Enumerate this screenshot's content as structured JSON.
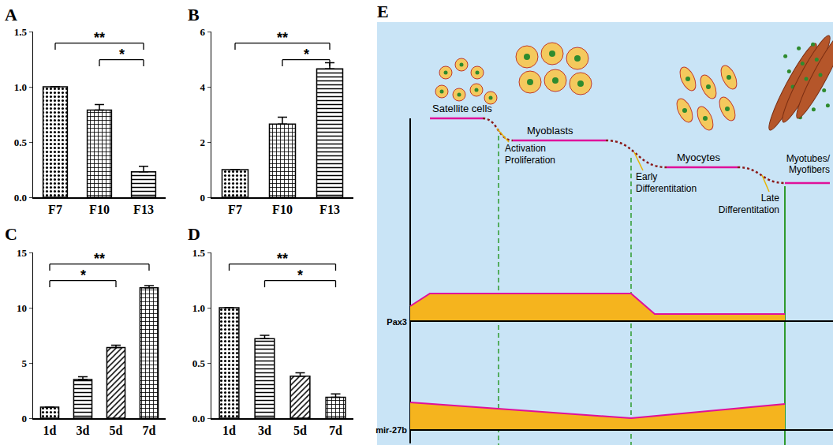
{
  "chart_data": [
    {
      "type": "bar",
      "panel": "A",
      "categories": [
        "F7",
        "F10",
        "F13"
      ],
      "values": [
        1.0,
        0.79,
        0.23
      ],
      "errors": [
        0,
        0.05,
        0.05
      ],
      "color": "#000000",
      "ylim": [
        0,
        1.5
      ],
      "yticks": [
        {
          "value": 0,
          "label": "0.0"
        },
        {
          "value": 0.5,
          "label": "0.5"
        },
        {
          "value": 1,
          "label": "1.0"
        },
        {
          "value": 1.5,
          "label": "1.5"
        }
      ],
      "grid": false,
      "annotations": [
        {
          "from": "F7",
          "to": "F13",
          "label": "**"
        },
        {
          "from": "F10",
          "to": "F13",
          "label": "*"
        }
      ]
    },
    {
      "type": "bar",
      "panel": "B",
      "categories": [
        "F7",
        "F10",
        "F13"
      ],
      "values": [
        1.0,
        2.65,
        4.65
      ],
      "errors": [
        0,
        0.25,
        0.22
      ],
      "color": "#000000",
      "ylim": [
        0,
        6
      ],
      "yticks": [
        0,
        2,
        4,
        6
      ],
      "grid": false,
      "annotations": [
        {
          "from": "F7",
          "to": "F13",
          "label": "**"
        },
        {
          "from": "F10",
          "to": "F13",
          "label": "*"
        }
      ]
    },
    {
      "type": "bar",
      "panel": "C",
      "categories": [
        "1d",
        "3d",
        "5d",
        "7d"
      ],
      "values": [
        1.0,
        3.5,
        6.4,
        11.8
      ],
      "errors": [
        0,
        0.25,
        0.2,
        0.2
      ],
      "color": "#000000",
      "ylim": [
        0,
        15
      ],
      "yticks": [
        0,
        5,
        10,
        15
      ],
      "grid": false,
      "annotations": [
        {
          "from": "1d",
          "to": "7d",
          "label": "**"
        },
        {
          "from": "1d",
          "to": "5d",
          "label": "*"
        }
      ]
    },
    {
      "type": "bar",
      "panel": "D",
      "categories": [
        "1d",
        "3d",
        "5d",
        "7d"
      ],
      "values": [
        1.0,
        0.72,
        0.38,
        0.19
      ],
      "errors": [
        0,
        0.03,
        0.03,
        0.03
      ],
      "color": "#000000",
      "ylim": [
        0,
        1.5
      ],
      "yticks": [
        {
          "value": 0,
          "label": "0.0"
        },
        {
          "value": 0.5,
          "label": "0.5"
        },
        {
          "value": 1,
          "label": "1.0"
        },
        {
          "value": 1.5,
          "label": "1.5"
        }
      ],
      "grid": false,
      "annotations": [
        {
          "from": "1d",
          "to": "7d",
          "label": "**"
        },
        {
          "from": "3d",
          "to": "7d",
          "label": "*"
        }
      ]
    }
  ],
  "diagram": {
    "panel": "E",
    "stages": [
      "Satellite cells",
      "Myoblasts",
      "Myocytes",
      "Myotubes/Myofibers"
    ],
    "transitions": [
      "Activation Proliferation",
      "Early Differentitation",
      "Late Differentitation"
    ],
    "rows": [
      "Pax3",
      "mir-27b"
    ]
  }
}
